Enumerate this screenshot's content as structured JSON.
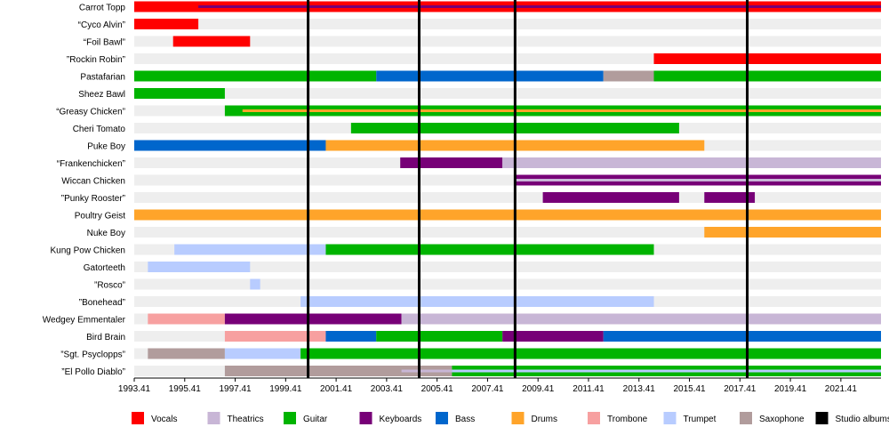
{
  "chart_data": {
    "type": "timeline",
    "title": "",
    "x_start": 1993.41,
    "x_end": 2023.0,
    "xticks": [
      {
        "value": 1993.41,
        "label": "1993.41"
      },
      {
        "value": 1995.41,
        "label": "1995.41"
      },
      {
        "value": 1997.41,
        "label": "1997.41"
      },
      {
        "value": 1999.41,
        "label": "1999.41"
      },
      {
        "value": 2001.41,
        "label": "2001.41"
      },
      {
        "value": 2003.41,
        "label": "2003.41"
      },
      {
        "value": 2005.41,
        "label": "2005.41"
      },
      {
        "value": 2007.41,
        "label": "2007.41"
      },
      {
        "value": 2009.41,
        "label": "2009.41"
      },
      {
        "value": 2011.41,
        "label": "2011.41"
      },
      {
        "value": 2013.41,
        "label": "2013.41"
      },
      {
        "value": 2015.41,
        "label": "2015.41"
      },
      {
        "value": 2017.41,
        "label": "2017.41"
      },
      {
        "value": 2019.41,
        "label": "2019.41"
      },
      {
        "value": 2021.41,
        "label": "2021.41"
      }
    ],
    "albums": [
      2000.3,
      2004.7,
      2008.5,
      2017.7
    ],
    "roles": {
      "vocals": {
        "label": "Vocals",
        "color": "#ff0000"
      },
      "theatrics": {
        "label": "Theatrics",
        "color": "#c8b6d6"
      },
      "guitar": {
        "label": "Guitar",
        "color": "#00b400"
      },
      "keyboards": {
        "label": "Keyboards",
        "color": "#770077"
      },
      "bass": {
        "label": "Bass",
        "color": "#0066cc"
      },
      "drums": {
        "label": "Drums",
        "color": "#ffa42a"
      },
      "trombone": {
        "label": "Trombone",
        "color": "#f7a0a0"
      },
      "trumpet": {
        "label": "Trumpet",
        "color": "#b8ccff"
      },
      "saxophone": {
        "label": "Saxophone",
        "color": "#b19c9c"
      },
      "studio": {
        "label": "Studio albums",
        "color": "#000000"
      }
    },
    "legend_order": [
      "vocals",
      "theatrics",
      "guitar",
      "keyboards",
      "bass",
      "drums",
      "trombone",
      "trumpet",
      "saxophone",
      "studio"
    ],
    "members": [
      {
        "name": "Carrot Topp",
        "bars": [
          {
            "role": "theatrics",
            "start": 1993.41,
            "end": 2023.0
          },
          {
            "role": "vocals",
            "start": 1993.41,
            "end": 2023.0
          },
          {
            "role": "keyboards",
            "start": 1995.95,
            "end": 2023.0,
            "thin": true
          }
        ]
      },
      {
        "name": "“Cyco Alvin”",
        "bars": [
          {
            "role": "vocals",
            "start": 1993.41,
            "end": 1995.95
          }
        ]
      },
      {
        "name": "“Foil Bawl”",
        "bars": [
          {
            "role": "vocals",
            "start": 1994.95,
            "end": 1998.0
          }
        ]
      },
      {
        "name": "”Rockin Robin”",
        "bars": [
          {
            "role": "vocals",
            "start": 2014.0,
            "end": 2023.0
          }
        ]
      },
      {
        "name": "Pastafarian",
        "bars": [
          {
            "role": "guitar",
            "start": 1993.41,
            "end": 2003.0
          },
          {
            "role": "bass",
            "start": 2003.0,
            "end": 2012.0
          },
          {
            "role": "saxophone",
            "start": 2012.0,
            "end": 2014.0
          },
          {
            "role": "guitar",
            "start": 2014.0,
            "end": 2023.0
          }
        ]
      },
      {
        "name": "Sheez Bawl",
        "bars": [
          {
            "role": "guitar",
            "start": 1993.41,
            "end": 1997.0
          }
        ]
      },
      {
        "name": "“Greasy Chicken”",
        "bars": [
          {
            "role": "guitar",
            "start": 1997.0,
            "end": 2023.0
          },
          {
            "role": "drums",
            "start": 1997.7,
            "end": 2023.0,
            "thin": true
          }
        ]
      },
      {
        "name": "Cheri Tomato",
        "bars": [
          {
            "role": "guitar",
            "start": 2002.0,
            "end": 2015.0
          }
        ]
      },
      {
        "name": "Puke Boy",
        "bars": [
          {
            "role": "bass",
            "start": 1993.41,
            "end": 2001.0
          },
          {
            "role": "drums",
            "start": 2001.0,
            "end": 2016.0
          }
        ]
      },
      {
        "name": "“Frankenchicken”",
        "bars": [
          {
            "role": "keyboards",
            "start": 2003.95,
            "end": 2008.0
          },
          {
            "role": "theatrics",
            "start": 2008.0,
            "end": 2023.0
          }
        ]
      },
      {
        "name": "Wiccan Chicken",
        "bars": [
          {
            "role": "keyboards",
            "start": 2008.5,
            "end": 2023.0
          },
          {
            "role": "theatrics",
            "start": 2008.5,
            "end": 2023.0,
            "thin": true
          }
        ]
      },
      {
        "name": "”Punky Rooster”",
        "bars": [
          {
            "role": "keyboards",
            "start": 2009.6,
            "end": 2015.0
          },
          {
            "role": "keyboards",
            "start": 2016.0,
            "end": 2018.0
          }
        ]
      },
      {
        "name": "Poultry Geist",
        "bars": [
          {
            "role": "drums",
            "start": 1993.41,
            "end": 2023.0
          }
        ]
      },
      {
        "name": "Nuke Boy",
        "bars": [
          {
            "role": "drums",
            "start": 2016.0,
            "end": 2023.0
          }
        ]
      },
      {
        "name": "Kung Pow Chicken",
        "bars": [
          {
            "role": "trumpet",
            "start": 1995.0,
            "end": 2001.0
          },
          {
            "role": "guitar",
            "start": 2001.0,
            "end": 2014.0
          }
        ]
      },
      {
        "name": "Gatorteeth",
        "bars": [
          {
            "role": "trumpet",
            "start": 1993.95,
            "end": 1998.0
          }
        ]
      },
      {
        "name": "”Rosco”",
        "bars": [
          {
            "role": "trumpet",
            "start": 1998.0,
            "end": 1998.4
          }
        ]
      },
      {
        "name": "”Bonehead”",
        "bars": [
          {
            "role": "trumpet",
            "start": 2000.0,
            "end": 2014.0
          }
        ]
      },
      {
        "name": "Wedgey Emmentaler",
        "bars": [
          {
            "role": "trombone",
            "start": 1993.95,
            "end": 1997.0
          },
          {
            "role": "keyboards",
            "start": 1997.0,
            "end": 2004.0
          },
          {
            "role": "theatrics",
            "start": 2004.0,
            "end": 2023.0
          }
        ]
      },
      {
        "name": "Bird Brain",
        "bars": [
          {
            "role": "trombone",
            "start": 1997.0,
            "end": 2001.0
          },
          {
            "role": "bass",
            "start": 2001.0,
            "end": 2003.0
          },
          {
            "role": "guitar",
            "start": 2003.0,
            "end": 2008.0
          },
          {
            "role": "keyboards",
            "start": 2008.0,
            "end": 2012.0
          },
          {
            "role": "bass",
            "start": 2012.0,
            "end": 2023.0
          }
        ]
      },
      {
        "name": "”Sgt. Psyclopps”",
        "bars": [
          {
            "role": "saxophone",
            "start": 1993.95,
            "end": 1997.0
          },
          {
            "role": "trumpet",
            "start": 1997.0,
            "end": 2000.0
          },
          {
            "role": "guitar",
            "start": 2000.0,
            "end": 2023.0
          }
        ]
      },
      {
        "name": "”El Pollo Diablo”",
        "bars": [
          {
            "role": "saxophone",
            "start": 1997.0,
            "end": 2006.0
          },
          {
            "role": "guitar",
            "start": 2006.0,
            "end": 2023.0
          },
          {
            "role": "theatrics",
            "start": 2004.0,
            "end": 2006.0,
            "thin": true
          },
          {
            "role": "trumpet",
            "start": 2006.0,
            "end": 2023.0,
            "thin": true
          }
        ]
      }
    ]
  }
}
